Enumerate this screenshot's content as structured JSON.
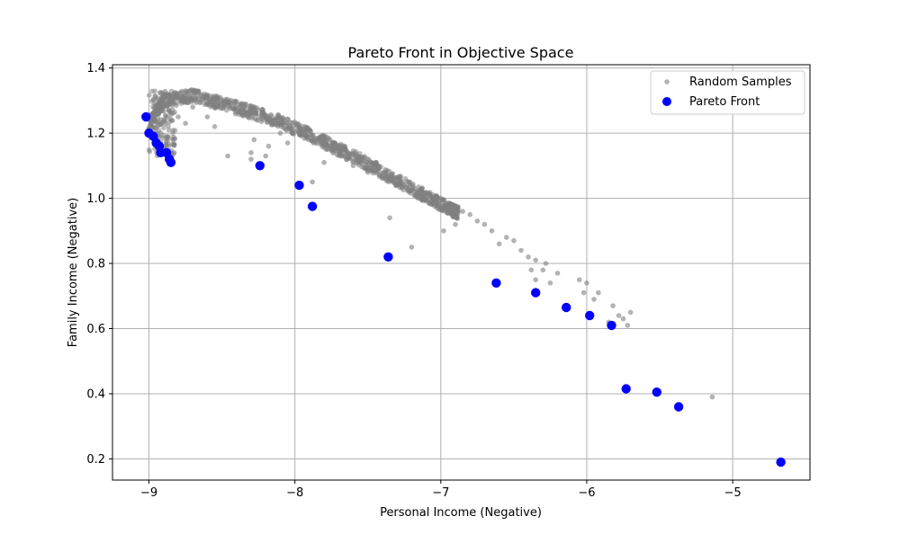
{
  "chart_data": {
    "type": "scatter",
    "title": "Pareto Front in Objective Space",
    "xlabel": "Personal Income (Negative)",
    "ylabel": "Family Income (Negative)",
    "xlim": [
      -9.25,
      -4.47
    ],
    "ylim": [
      0.135,
      1.41
    ],
    "xticks": [
      -9,
      -8,
      -7,
      -6,
      -5
    ],
    "yticks": [
      0.2,
      0.4,
      0.6,
      0.8,
      1.0,
      1.2,
      1.4
    ],
    "xtick_labels": [
      "−9",
      "−8",
      "−7",
      "−6",
      "−5"
    ],
    "ytick_labels": [
      "0.2",
      "0.4",
      "0.6",
      "0.8",
      "1.0",
      "1.2",
      "1.4"
    ],
    "grid": true,
    "legend_position": "top-right",
    "colors": {
      "random": "#808080",
      "pareto": "#0000ff",
      "grid": "#b0b0b0"
    },
    "series": [
      {
        "name": "Random Samples",
        "marker": "small-circle",
        "band": {
          "ridge": [
            [
              -9.0,
              1.25
            ],
            [
              -8.9,
              1.32
            ],
            [
              -8.7,
              1.335
            ],
            [
              -8.5,
              1.31
            ],
            [
              -8.3,
              1.285
            ],
            [
              -8.1,
              1.255
            ],
            [
              -7.9,
              1.215
            ],
            [
              -7.7,
              1.17
            ],
            [
              -7.5,
              1.125
            ],
            [
              -7.3,
              1.075
            ],
            [
              -7.1,
              1.025
            ],
            [
              -6.95,
              0.99
            ],
            [
              -6.88,
              0.975
            ]
          ],
          "thickness": 0.04
        },
        "points": [
          [
            -8.8,
            1.25
          ],
          [
            -8.75,
            1.23
          ],
          [
            -8.7,
            1.28
          ],
          [
            -8.6,
            1.25
          ],
          [
            -8.55,
            1.22
          ],
          [
            -8.46,
            1.13
          ],
          [
            -8.3,
            1.14
          ],
          [
            -8.3,
            1.12
          ],
          [
            -8.28,
            1.18
          ],
          [
            -8.2,
            1.13
          ],
          [
            -8.18,
            1.16
          ],
          [
            -8.1,
            1.2
          ],
          [
            -8.05,
            1.17
          ],
          [
            -7.88,
            1.05
          ],
          [
            -7.8,
            1.11
          ],
          [
            -7.6,
            1.1
          ],
          [
            -7.5,
            1.08
          ],
          [
            -7.35,
            0.94
          ],
          [
            -7.2,
            0.85
          ],
          [
            -6.98,
            0.9
          ],
          [
            -6.9,
            0.92
          ],
          [
            -6.85,
            0.96
          ],
          [
            -6.8,
            0.95
          ],
          [
            -6.75,
            0.93
          ],
          [
            -6.7,
            0.92
          ],
          [
            -6.65,
            0.9
          ],
          [
            -6.6,
            0.86
          ],
          [
            -6.55,
            0.88
          ],
          [
            -6.5,
            0.87
          ],
          [
            -6.45,
            0.84
          ],
          [
            -6.4,
            0.82
          ],
          [
            -6.35,
            0.81
          ],
          [
            -6.38,
            0.78
          ],
          [
            -6.3,
            0.78
          ],
          [
            -6.28,
            0.8
          ],
          [
            -6.25,
            0.74
          ],
          [
            -6.35,
            0.75
          ],
          [
            -6.2,
            0.77
          ],
          [
            -6.05,
            0.75
          ],
          [
            -6.0,
            0.74
          ],
          [
            -6.02,
            0.71
          ],
          [
            -5.95,
            0.69
          ],
          [
            -5.92,
            0.71
          ],
          [
            -5.85,
            0.62
          ],
          [
            -5.82,
            0.67
          ],
          [
            -5.78,
            0.64
          ],
          [
            -5.75,
            0.63
          ],
          [
            -5.72,
            0.61
          ],
          [
            -5.7,
            0.65
          ],
          [
            -5.14,
            0.39
          ]
        ]
      },
      {
        "name": "Pareto Front",
        "marker": "large-circle",
        "points": [
          [
            -9.02,
            1.25
          ],
          [
            -9.0,
            1.2
          ],
          [
            -8.97,
            1.19
          ],
          [
            -8.95,
            1.17
          ],
          [
            -8.93,
            1.16
          ],
          [
            -8.92,
            1.14
          ],
          [
            -8.88,
            1.14
          ],
          [
            -8.86,
            1.12
          ],
          [
            -8.85,
            1.11
          ],
          [
            -8.24,
            1.1
          ],
          [
            -7.97,
            1.04
          ],
          [
            -7.88,
            0.975
          ],
          [
            -7.36,
            0.82
          ],
          [
            -6.62,
            0.74
          ],
          [
            -6.35,
            0.71
          ],
          [
            -6.14,
            0.665
          ],
          [
            -5.98,
            0.64
          ],
          [
            -5.83,
            0.61
          ],
          [
            -5.73,
            0.415
          ],
          [
            -5.52,
            0.405
          ],
          [
            -5.37,
            0.36
          ],
          [
            -4.67,
            0.19
          ]
        ]
      }
    ]
  }
}
